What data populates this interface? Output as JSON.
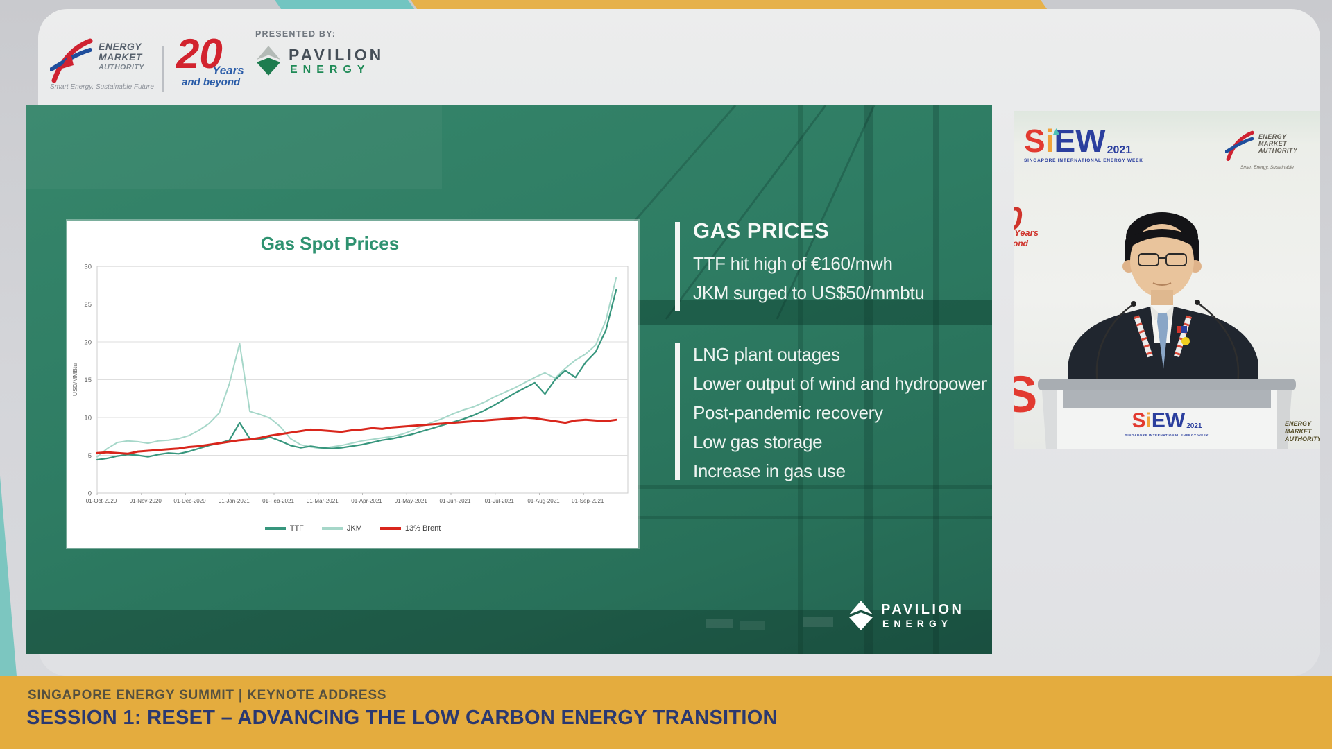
{
  "top": {
    "ribbon_teal": "#72c5c1",
    "ribbon_yellow": "#e6b14a"
  },
  "header": {
    "ema": {
      "name_lines": [
        "ENERGY",
        "MARKET",
        "AUTHORITY"
      ],
      "tagline": "Smart Energy, Sustainable Future"
    },
    "anniversary": {
      "number": "20",
      "years": "Years",
      "beyond": "and beyond"
    },
    "presented_by": "PRESENTED BY:",
    "pavilion": {
      "name": "PAVILION",
      "division": "ENERGY"
    }
  },
  "slide": {
    "background_color": "#2e7b62",
    "block1": {
      "title": "GAS PRICES",
      "lines": [
        "TTF hit high of €160/mwh",
        "JKM surged to US$50/mmbtu"
      ]
    },
    "block2": {
      "lines": [
        "LNG plant outages",
        "Lower output of wind and hydropower",
        "Post-pandemic recovery",
        "Low gas storage",
        "Increase in gas use"
      ]
    },
    "pavilion": {
      "name": "PAVILION",
      "division": "ENERGY"
    }
  },
  "chart_data": {
    "type": "line",
    "title": "Gas Spot Prices",
    "ylabel": "USD/MMBtu",
    "ylim": [
      0,
      30
    ],
    "ytick_step": 5,
    "grid": "horizontal",
    "legend_position": "bottom",
    "x_unit": "weekly samples, index 0 = 01-Oct-2020",
    "x_tick_labels": [
      "01-Oct-2020",
      "01-Nov-2020",
      "01-Dec-2020",
      "01-Jan-2021",
      "01-Feb-2021",
      "01-Mar-2021",
      "01-Apr-2021",
      "01-May-2021",
      "01-Jun-2021",
      "01-Jul-2021",
      "01-Aug-2021",
      "01-Sep-2021"
    ],
    "series": [
      {
        "name": "TTF",
        "color": "#37967d",
        "values": [
          4.4,
          4.6,
          4.9,
          5.1,
          5.0,
          4.8,
          5.1,
          5.3,
          5.2,
          5.5,
          5.9,
          6.3,
          6.6,
          7.0,
          9.3,
          7.2,
          7.1,
          7.4,
          6.9,
          6.3,
          6.0,
          6.2,
          6.0,
          5.9,
          6.0,
          6.2,
          6.4,
          6.7,
          7.0,
          7.2,
          7.5,
          7.8,
          8.2,
          8.6,
          9.0,
          9.4,
          9.8,
          10.3,
          10.9,
          11.6,
          12.4,
          13.2,
          13.9,
          14.6,
          13.1,
          15.0,
          16.2,
          15.3,
          17.3,
          18.7,
          21.6,
          26.9
        ]
      },
      {
        "name": "JKM",
        "color": "#a6d7c9",
        "values": [
          4.8,
          5.9,
          6.7,
          6.9,
          6.8,
          6.6,
          6.9,
          7.0,
          7.2,
          7.6,
          8.3,
          9.2,
          10.6,
          14.5,
          19.8,
          10.8,
          10.4,
          9.9,
          8.8,
          7.2,
          6.4,
          6.1,
          5.9,
          6.1,
          6.3,
          6.6,
          6.9,
          7.1,
          7.3,
          7.5,
          7.8,
          8.3,
          8.9,
          9.4,
          9.9,
          10.5,
          11.0,
          11.4,
          12.0,
          12.7,
          13.3,
          13.9,
          14.6,
          15.3,
          15.9,
          15.2,
          16.5,
          17.6,
          18.4,
          19.6,
          22.9,
          28.5
        ]
      },
      {
        "name": "13% Brent",
        "color": "#d9261c",
        "values": [
          5.3,
          5.4,
          5.3,
          5.2,
          5.5,
          5.6,
          5.7,
          5.8,
          5.9,
          6.1,
          6.2,
          6.4,
          6.6,
          6.8,
          7.0,
          7.1,
          7.3,
          7.6,
          7.8,
          8.0,
          8.2,
          8.4,
          8.3,
          8.2,
          8.1,
          8.3,
          8.4,
          8.6,
          8.5,
          8.7,
          8.8,
          8.9,
          9.0,
          9.1,
          9.2,
          9.3,
          9.4,
          9.5,
          9.6,
          9.7,
          9.8,
          9.9,
          10.0,
          9.9,
          9.7,
          9.5,
          9.3,
          9.6,
          9.7,
          9.6,
          9.5,
          9.7
        ]
      }
    ]
  },
  "video": {
    "siew_logo": {
      "letters": [
        {
          "ch": "S",
          "color": "#e23a30"
        },
        {
          "ch": "i",
          "color": "#f0a23a"
        },
        {
          "ch": "E",
          "color": "#2b3f9e"
        },
        {
          "ch": "W",
          "color": "#2b3f9e"
        }
      ],
      "year": "2021",
      "year_color": "#2b3f9e",
      "dot_color": "#4cc1b5",
      "tagline": "SINGAPORE INTERNATIONAL ENERGY WEEK"
    },
    "ema": {
      "name_lines": [
        "ENERGY",
        "MARKET",
        "AUTHORITY"
      ],
      "tagline": "Smart Energy, Sustainable"
    },
    "backdrop_fragments": {
      "partial_year": "0",
      "partial_years": "Years",
      "partial_beyond": "ond",
      "partial_siew": "S",
      "partial_ema": "ENERGY MARKET AUTHORITY"
    }
  },
  "footer": {
    "line1": "SINGAPORE ENERGY SUMMIT  |  KEYNOTE ADDRESS",
    "line2": "SESSION 1: RESET – ADVANCING THE LOW CARBON ENERGY TRANSITION",
    "bar_color": "#e4ac3e"
  }
}
